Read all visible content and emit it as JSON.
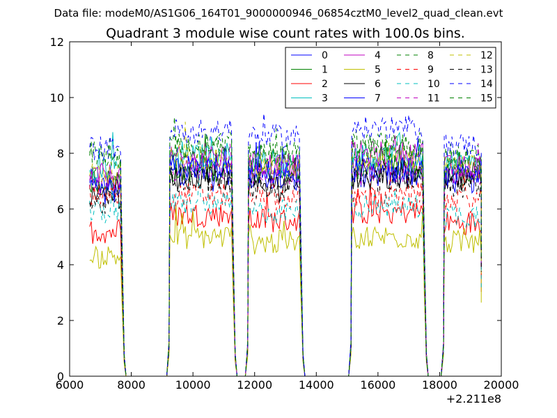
{
  "figure": {
    "suptitle": "Data file: modeM0/AS1G06_164T01_9000000946_06854cztM0_level2_quad_clean.evt"
  },
  "chart_data": {
    "type": "line",
    "title": "Quadrant 3 module wise count rates with 100.0s bins.",
    "xlabel": "",
    "ylabel": "",
    "x_offset_label": "+2.211e8",
    "xlim": [
      6000,
      20000
    ],
    "ylim": [
      0,
      12
    ],
    "xticks": [
      6000,
      8000,
      10000,
      12000,
      14000,
      16000,
      18000,
      20000
    ],
    "yticks": [
      0,
      2,
      4,
      6,
      8,
      10,
      12
    ],
    "xtick_labels": [
      "6000",
      "8000",
      "10000",
      "12000",
      "14000",
      "16000",
      "18000",
      "20000"
    ],
    "ytick_labels": [
      "0",
      "2",
      "4",
      "6",
      "8",
      "10",
      "12"
    ],
    "grid": false,
    "legend_position": "top-right",
    "legend_columns": 4,
    "x_segments": [
      {
        "start": 6650,
        "end": 7650
      },
      {
        "start": 9250,
        "end": 11250
      },
      {
        "start": 11800,
        "end": 13450
      },
      {
        "start": 15150,
        "end": 17450
      },
      {
        "start": 18150,
        "end": 19350
      }
    ],
    "gaps": [
      [
        7800,
        9150
      ],
      [
        11450,
        11650
      ],
      [
        13650,
        15050
      ],
      [
        17550,
        18050
      ]
    ],
    "series": [
      {
        "name": "0",
        "color": "#0000ff",
        "dash": "solid",
        "levels": [
          6.8,
          7.3,
          7.1,
          7.2,
          7.0
        ]
      },
      {
        "name": "1",
        "color": "#008000",
        "dash": "solid",
        "levels": [
          7.0,
          7.4,
          7.4,
          7.5,
          7.2
        ]
      },
      {
        "name": "2",
        "color": "#ff0000",
        "dash": "solid",
        "levels": [
          5.2,
          5.8,
          5.6,
          5.9,
          5.5
        ]
      },
      {
        "name": "3",
        "color": "#00bfbf",
        "dash": "solid",
        "levels": [
          7.5,
          7.9,
          7.7,
          7.9,
          7.6
        ]
      },
      {
        "name": "4",
        "color": "#bf00bf",
        "dash": "solid",
        "levels": [
          7.2,
          7.8,
          7.6,
          8.0,
          7.5
        ]
      },
      {
        "name": "5",
        "color": "#bfbf00",
        "dash": "solid",
        "levels": [
          4.3,
          5.0,
          4.8,
          5.0,
          4.8
        ]
      },
      {
        "name": "6",
        "color": "#000000",
        "dash": "solid",
        "levels": [
          6.4,
          7.1,
          6.9,
          7.1,
          7.0
        ]
      },
      {
        "name": "7",
        "color": "#0000ff",
        "dash": "solid",
        "levels": [
          6.6,
          7.5,
          7.3,
          7.4,
          7.1
        ]
      },
      {
        "name": "8",
        "color": "#008000",
        "dash": "dashed",
        "levels": [
          7.9,
          8.2,
          8.0,
          8.3,
          7.9
        ]
      },
      {
        "name": "9",
        "color": "#ff0000",
        "dash": "dashed",
        "levels": [
          6.5,
          6.5,
          6.4,
          6.4,
          6.3
        ]
      },
      {
        "name": "10",
        "color": "#00bfbf",
        "dash": "dashed",
        "levels": [
          5.9,
          6.2,
          5.9,
          6.1,
          5.8
        ]
      },
      {
        "name": "11",
        "color": "#bf00bf",
        "dash": "dashed",
        "levels": [
          7.1,
          7.5,
          7.3,
          7.4,
          7.2
        ]
      },
      {
        "name": "12",
        "color": "#bfbf00",
        "dash": "dashed",
        "levels": [
          7.3,
          7.8,
          7.5,
          7.8,
          7.5
        ]
      },
      {
        "name": "13",
        "color": "#000000",
        "dash": "dashed",
        "levels": [
          6.2,
          7.0,
          6.8,
          7.0,
          6.8
        ]
      },
      {
        "name": "14",
        "color": "#0000ff",
        "dash": "dashed",
        "levels": [
          8.2,
          8.8,
          8.6,
          8.9,
          8.3
        ]
      },
      {
        "name": "15",
        "color": "#008000",
        "dash": "dashed",
        "levels": [
          7.7,
          8.3,
          7.9,
          8.1,
          7.7
        ]
      }
    ]
  }
}
